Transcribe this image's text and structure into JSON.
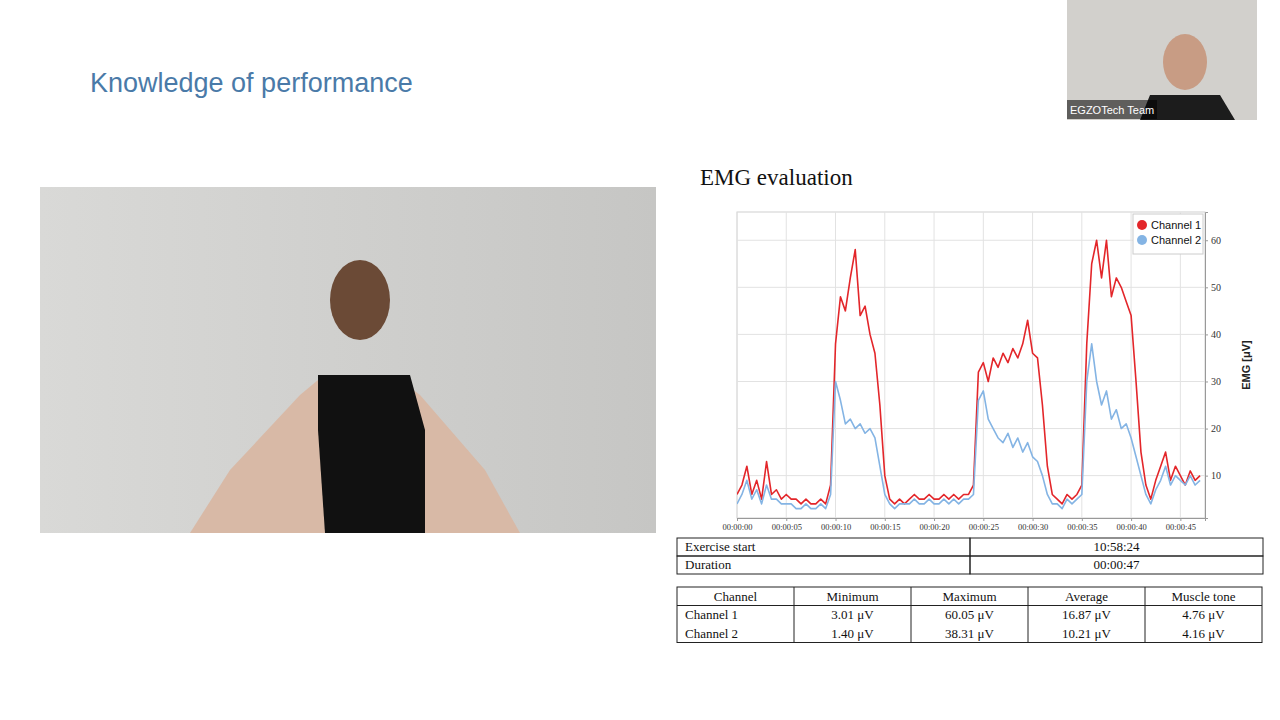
{
  "slide": {
    "title": "Knowledge of performance",
    "presenter_label": "EGZOTech Team"
  },
  "chart_data": {
    "type": "line",
    "title": "EMG evaluation",
    "y_label": "EMG [μV]",
    "x": [
      0,
      0.5,
      1,
      1.5,
      2,
      2.5,
      3,
      3.5,
      4,
      4.5,
      5,
      5.5,
      6,
      6.5,
      7,
      7.5,
      8,
      8.5,
      9,
      9.5,
      10,
      10.5,
      11,
      11.5,
      12,
      12.5,
      13,
      13.5,
      14,
      14.5,
      15,
      15.5,
      16,
      16.5,
      17,
      17.5,
      18,
      18.5,
      19,
      19.5,
      20,
      20.5,
      21,
      21.5,
      22,
      22.5,
      23,
      23.5,
      24,
      24.5,
      25,
      25.5,
      26,
      26.5,
      27,
      27.5,
      28,
      28.5,
      29,
      29.5,
      30,
      30.5,
      31,
      31.5,
      32,
      32.5,
      33,
      33.5,
      34,
      34.5,
      35,
      35.5,
      36,
      36.5,
      37,
      37.5,
      38,
      38.5,
      39,
      39.5,
      40,
      40.5,
      41,
      41.5,
      42,
      42.5,
      43,
      43.5,
      44,
      44.5,
      45,
      45.5,
      46,
      46.5,
      47
    ],
    "xlim": [
      0,
      47.5
    ],
    "xticks": [
      {
        "value": 0,
        "label": "00:00:00"
      },
      {
        "value": 5,
        "label": "00:00:05"
      },
      {
        "value": 10,
        "label": "00:00:10"
      },
      {
        "value": 15,
        "label": "00:00:15"
      },
      {
        "value": 20,
        "label": "00:00:20"
      },
      {
        "value": 25,
        "label": "00:00:25"
      },
      {
        "value": 30,
        "label": "00:00:30"
      },
      {
        "value": 35,
        "label": "00:00:35"
      },
      {
        "value": 40,
        "label": "00:00:40"
      },
      {
        "value": 45,
        "label": "00:00:45"
      }
    ],
    "ylim": [
      1,
      66
    ],
    "yticks": [
      10,
      20,
      30,
      40,
      50,
      60
    ],
    "grid": true,
    "legend": "upper right",
    "series": [
      {
        "name": "Channel 1",
        "color": "#e3262a",
        "values": [
          6,
          8,
          12,
          6,
          9,
          5,
          13,
          6,
          7,
          5,
          6,
          5,
          5,
          4,
          5,
          4,
          4,
          5,
          4,
          8,
          38,
          48,
          45,
          52,
          58,
          44,
          46,
          40,
          36,
          25,
          10,
          5,
          4,
          5,
          4,
          5,
          6,
          5,
          5,
          6,
          5,
          5,
          6,
          5,
          6,
          5,
          6,
          6,
          8,
          32,
          34,
          30,
          35,
          33,
          36,
          34,
          37,
          35,
          38,
          43,
          36,
          35,
          25,
          12,
          6,
          5,
          4,
          6,
          5,
          6,
          8,
          38,
          55,
          60,
          52,
          60,
          48,
          52,
          50,
          47,
          44,
          30,
          15,
          8,
          5,
          9,
          12,
          15,
          9,
          12,
          10,
          8,
          11,
          9,
          10
        ]
      },
      {
        "name": "Channel 2",
        "color": "#84b4e4",
        "values": [
          4,
          6,
          9,
          5,
          7,
          4,
          8,
          5,
          5,
          4,
          4,
          4,
          3,
          3,
          4,
          3,
          3,
          4,
          3,
          6,
          30,
          26,
          21,
          22,
          20,
          21,
          19,
          20,
          18,
          12,
          6,
          4,
          3,
          4,
          4,
          4,
          5,
          4,
          4,
          5,
          4,
          4,
          5,
          4,
          5,
          4,
          5,
          5,
          6,
          26,
          28,
          22,
          20,
          18,
          17,
          19,
          16,
          18,
          15,
          17,
          14,
          13,
          10,
          6,
          4,
          4,
          3,
          5,
          4,
          5,
          6,
          30,
          38,
          30,
          25,
          28,
          22,
          24,
          20,
          21,
          18,
          14,
          10,
          6,
          4,
          7,
          9,
          12,
          8,
          10,
          9,
          8,
          10,
          8,
          9
        ]
      }
    ]
  },
  "info_table": {
    "rows": [
      [
        "Exercise start",
        "10:58:24"
      ],
      [
        "Duration",
        "00:00:47"
      ]
    ]
  },
  "stats_table": {
    "header": [
      "Channel",
      "Minimum",
      "Maximum",
      "Average",
      "Muscle tone"
    ],
    "rows": [
      [
        "Channel 1",
        "3.01 μV",
        "60.05 μV",
        "16.87 μV",
        "4.76 μV"
      ],
      [
        "Channel 2",
        "1.40 μV",
        "38.31 μV",
        "10.21 μV",
        "4.16 μV"
      ]
    ]
  }
}
